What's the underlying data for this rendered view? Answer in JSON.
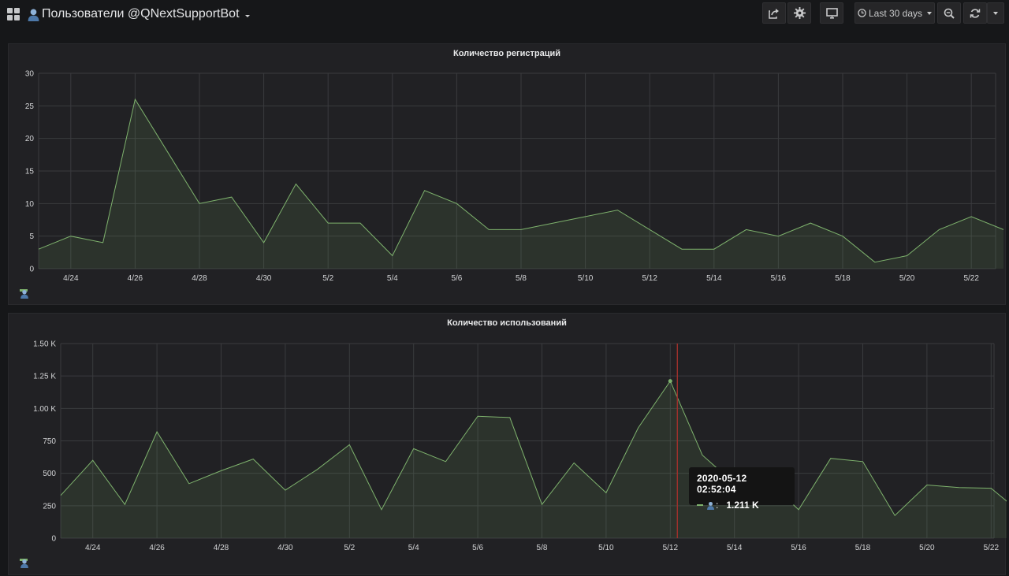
{
  "header": {
    "title": "Пользователи @QNextSupportBot",
    "time_range_label": "Last 30 days",
    "icons": [
      "apps-icon",
      "user-icon",
      "share-icon",
      "gear-icon",
      "monitor-icon",
      "clock-icon",
      "zoom-out-icon",
      "refresh-icon",
      "chevron-down-icon"
    ]
  },
  "panels": [
    {
      "title": "Количество регистраций"
    },
    {
      "title": "Количество использований"
    }
  ],
  "tooltip": {
    "time": "2020-05-12 02:52:04",
    "value": "1.211 K"
  },
  "colors": {
    "series": "#7eb26d",
    "background": "#161719",
    "panel": "#212124",
    "grid": "#3a3b3e",
    "cursor": "#a0302c"
  },
  "chart_data": [
    {
      "type": "area",
      "title": "Количество регистраций",
      "x": [
        "4/23",
        "4/24",
        "4/25",
        "4/26",
        "4/27",
        "4/28",
        "4/29",
        "4/30",
        "5/1",
        "5/2",
        "5/3",
        "5/4",
        "5/5",
        "5/6",
        "5/7",
        "5/8",
        "5/9",
        "5/10",
        "5/11",
        "5/12",
        "5/13",
        "5/14",
        "5/15",
        "5/16",
        "5/17",
        "5/18",
        "5/19",
        "5/20",
        "5/21",
        "5/22",
        "5/23"
      ],
      "series": [
        {
          "name": "",
          "legend_icon": "user-icon",
          "values": [
            3,
            5,
            4,
            26,
            18,
            10,
            11,
            4,
            13,
            7,
            7,
            2,
            12,
            10,
            6,
            6,
            7,
            8,
            9,
            6,
            3,
            3,
            6,
            5,
            7,
            5,
            1,
            2,
            6,
            8,
            6
          ]
        }
      ],
      "x_ticks": [
        "4/24",
        "4/26",
        "4/28",
        "4/30",
        "5/2",
        "5/4",
        "5/6",
        "5/8",
        "5/10",
        "5/12",
        "5/14",
        "5/16",
        "5/18",
        "5/20",
        "5/22"
      ],
      "y_ticks": [
        "0",
        "5",
        "10",
        "15",
        "20",
        "25",
        "30"
      ],
      "ylim": [
        0,
        30
      ],
      "grid": true,
      "legend": "bottom-left"
    },
    {
      "type": "area",
      "title": "Количество использований",
      "x": [
        "4/23",
        "4/24",
        "4/25",
        "4/26",
        "4/27",
        "4/28",
        "4/29",
        "4/30",
        "5/1",
        "5/2",
        "5/3",
        "5/4",
        "5/5",
        "5/6",
        "5/7",
        "5/8",
        "5/9",
        "5/10",
        "5/11",
        "5/12",
        "5/13",
        "5/14",
        "5/15",
        "5/16",
        "5/17",
        "5/18",
        "5/19",
        "5/20",
        "5/21",
        "5/22",
        "5/23"
      ],
      "series": [
        {
          "name": "",
          "legend_icon": "user-icon",
          "values": [
            330,
            600,
            260,
            820,
            420,
            520,
            610,
            370,
            530,
            720,
            220,
            690,
            590,
            940,
            930,
            260,
            580,
            350,
            850,
            1211,
            640,
            420,
            450,
            220,
            615,
            590,
            175,
            410,
            390,
            385,
            180
          ]
        }
      ],
      "x_ticks": [
        "4/24",
        "4/26",
        "4/28",
        "4/30",
        "5/2",
        "5/4",
        "5/6",
        "5/8",
        "5/10",
        "5/12",
        "5/14",
        "5/16",
        "5/18",
        "5/20",
        "5/22"
      ],
      "y_ticks": [
        "0",
        "250",
        "500",
        "750",
        "1.00 K",
        "1.25 K",
        "1.50 K"
      ],
      "ylim": [
        0,
        1500
      ],
      "grid": true,
      "legend": "bottom-left",
      "cursor_x": "5/12 02:52"
    }
  ]
}
